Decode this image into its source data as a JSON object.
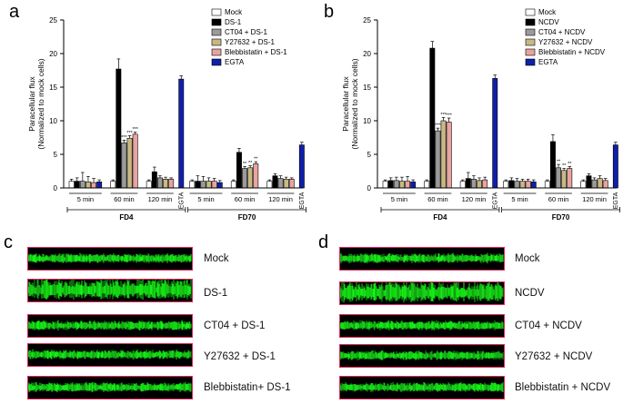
{
  "chart_data": [
    {
      "type": "bar",
      "panel": "a",
      "ylabel": "Paracellular flux",
      "ylabel2": "(Normalized to mock cells)",
      "ylim": [
        0,
        25
      ],
      "yticks": [
        "0",
        "5",
        "10",
        "15",
        "20",
        "25"
      ],
      "legend": [
        "Mock",
        "DS-1",
        "CT04 + DS-1",
        "Y27632 + DS-1",
        "Blebbistatin + DS-1",
        "EGTA"
      ],
      "time_labels": [
        "5 min",
        "60 min",
        "120 min"
      ],
      "egta_label": "EGTA",
      "group_labels": [
        "FD4",
        "FD70"
      ],
      "groups": [
        {
          "name": "FD4",
          "timepoints": [
            {
              "label": "5 min",
              "values": [
                1.0,
                1.0,
                1.0,
                0.9,
                0.8,
                0.9
              ],
              "errors": [
                0.3,
                0.5,
                1.3,
                0.8,
                0.6,
                0.3
              ]
            },
            {
              "label": "60 min",
              "values": [
                1.0,
                17.7,
                6.7,
                7.4,
                8.0
              ],
              "errors": [
                0.2,
                1.5,
                0.4,
                0.4,
                0.3
              ],
              "sig": [
                "",
                "",
                "***",
                "***",
                "***"
              ]
            },
            {
              "label": "120 min",
              "values": [
                1.0,
                2.4,
                1.5,
                1.3,
                1.3
              ],
              "errors": [
                0.2,
                0.7,
                0.3,
                0.3,
                0.2
              ]
            }
          ],
          "egta": {
            "value": 16.2,
            "error": 0.5
          }
        },
        {
          "name": "FD70",
          "timepoints": [
            {
              "label": "5 min",
              "values": [
                1.0,
                1.0,
                1.0,
                1.0,
                1.0,
                0.8
              ],
              "errors": [
                0.2,
                0.8,
                0.7,
                0.5,
                0.4,
                0.3
              ]
            },
            {
              "label": "60 min",
              "values": [
                1.0,
                5.3,
                2.9,
                3.0,
                3.6
              ],
              "errors": [
                0.2,
                0.6,
                0.3,
                0.3,
                0.3
              ],
              "sig": [
                "",
                "",
                "**",
                "**",
                "**"
              ]
            },
            {
              "label": "120 min",
              "values": [
                1.0,
                1.8,
                1.4,
                1.3,
                1.3
              ],
              "errors": [
                0.2,
                0.3,
                0.4,
                0.3,
                0.2
              ]
            }
          ],
          "egta": {
            "value": 6.4,
            "error": 0.4
          }
        }
      ]
    },
    {
      "type": "bar",
      "panel": "b",
      "ylabel": "Paracellular flux",
      "ylabel2": "(Normalized to mock cells)",
      "ylim": [
        0,
        25
      ],
      "yticks": [
        "0",
        "5",
        "10",
        "15",
        "20",
        "25"
      ],
      "legend": [
        "Mock",
        "NCDV",
        "CT04 + NCDV",
        "Y27632 + NCDV",
        "Blebbistatin + NCDV",
        "EGTA"
      ],
      "time_labels": [
        "5 min",
        "60 min",
        "120 min"
      ],
      "egta_label": "EGTA",
      "group_labels": [
        "FD4",
        "FD70"
      ],
      "groups": [
        {
          "name": "FD4",
          "timepoints": [
            {
              "label": "5 min",
              "values": [
                1.0,
                1.1,
                1.1,
                1.0,
                1.0,
                0.9
              ],
              "errors": [
                0.2,
                0.4,
                0.5,
                0.6,
                0.7,
                0.3
              ]
            },
            {
              "label": "60 min",
              "values": [
                1.0,
                20.8,
                8.5,
                10.0,
                9.8
              ],
              "errors": [
                0.2,
                1.0,
                0.4,
                0.5,
                0.6
              ],
              "sig": [
                "",
                "",
                "***",
                "***",
                "***"
              ]
            },
            {
              "label": "120 min",
              "values": [
                1.0,
                1.4,
                1.3,
                1.1,
                1.2
              ],
              "errors": [
                0.2,
                0.9,
                0.5,
                0.4,
                0.4
              ]
            }
          ],
          "egta": {
            "value": 16.3,
            "error": 0.5
          }
        },
        {
          "name": "FD70",
          "timepoints": [
            {
              "label": "5 min",
              "values": [
                1.0,
                1.1,
                1.0,
                1.0,
                1.0,
                0.9
              ],
              "errors": [
                0.2,
                0.4,
                0.4,
                0.3,
                0.3,
                0.3
              ]
            },
            {
              "label": "60 min",
              "values": [
                1.0,
                6.9,
                3.0,
                2.6,
                2.9
              ],
              "errors": [
                0.2,
                1.0,
                0.5,
                0.3,
                0.3
              ],
              "sig": [
                "",
                "",
                "**",
                "**",
                "**"
              ]
            },
            {
              "label": "120 min",
              "values": [
                1.0,
                1.8,
                1.2,
                1.4,
                1.1
              ],
              "errors": [
                0.2,
                0.3,
                0.3,
                0.4,
                0.3
              ]
            }
          ],
          "egta": {
            "value": 6.4,
            "error": 0.4
          }
        }
      ]
    }
  ],
  "series_colors": [
    "#ffffff",
    "#000000",
    "#9b9b9b",
    "#c9b883",
    "#e9a3a0",
    "#0f1faa"
  ],
  "panels": {
    "a": "a",
    "b": "b",
    "c": "c",
    "d": "d"
  },
  "micrographs": {
    "c": [
      "Mock",
      "DS-1",
      "CT04 + DS-1",
      "Y27632 + DS-1",
      "Blebbistatin+ DS-1"
    ],
    "d": [
      "Mock",
      "NCDV",
      "CT04 + NCDV",
      "Y27632 + NCDV",
      "Blebbistatin + NCDV"
    ]
  }
}
